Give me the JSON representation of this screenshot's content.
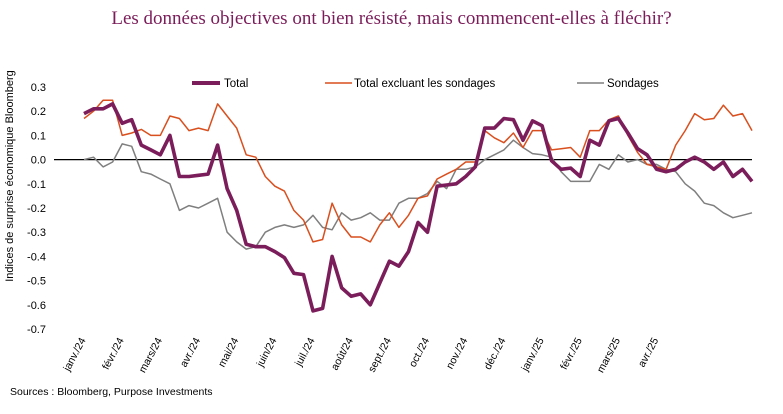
{
  "chart_data": {
    "type": "line",
    "title": "Les données objectives ont bien résisté, mais commencent-elles à fléchir?",
    "ylabel": "Indices de surprise économique Bloomberg",
    "xlabel": "",
    "ylim": [
      -0.7,
      0.3
    ],
    "yticks": [
      "0.3",
      "0.2",
      "0.1",
      "0.0",
      "-0.1",
      "-0.2",
      "-0.3",
      "-0.4",
      "-0.5",
      "-0.6",
      "-0.7"
    ],
    "ytick_values": [
      0.3,
      0.2,
      0.1,
      0.0,
      -0.1,
      -0.2,
      -0.3,
      -0.4,
      -0.5,
      -0.6,
      -0.7
    ],
    "month_labels": [
      "janv./24",
      "févr./24",
      "mars/24",
      "avr./24",
      "mai/24",
      "juin/24",
      "juil./24",
      "août/24",
      "sept./24",
      "oct./24",
      "nov./24",
      "déc./24",
      "janv./25",
      "févr./25",
      "mars/25",
      "avr./25"
    ],
    "points_per_month": 4,
    "source": "Sources : Bloomberg, Purpose Investments",
    "series": [
      {
        "name": "Total",
        "color": "#7b1d5a",
        "values": [
          0.19,
          0.21,
          0.21,
          0.23,
          0.15,
          0.165,
          0.06,
          0.04,
          0.02,
          0.1,
          -0.07,
          -0.07,
          -0.065,
          -0.06,
          0.06,
          -0.12,
          -0.21,
          -0.35,
          -0.36,
          -0.36,
          -0.38,
          -0.405,
          -0.47,
          -0.475,
          -0.625,
          -0.615,
          -0.4,
          -0.53,
          -0.565,
          -0.555,
          -0.6,
          -0.51,
          -0.42,
          -0.44,
          -0.38,
          -0.26,
          -0.3,
          -0.11,
          -0.105,
          -0.1,
          -0.07,
          -0.03,
          0.13,
          0.13,
          0.17,
          0.165,
          0.08,
          0.16,
          0.14,
          -0.005,
          -0.04,
          -0.035,
          -0.07,
          0.08,
          0.06,
          0.16,
          0.17,
          0.11,
          0.045,
          0.02,
          -0.04,
          -0.05,
          -0.04,
          -0.01,
          0.01,
          -0.01,
          -0.04,
          -0.01,
          -0.07,
          -0.04,
          -0.09
        ]
      },
      {
        "name": "Total excluant les sondages",
        "color": "#d94f1e",
        "values": [
          0.17,
          0.2,
          0.245,
          0.245,
          0.1,
          0.11,
          0.125,
          0.1,
          0.1,
          0.18,
          0.17,
          0.12,
          0.13,
          0.12,
          0.23,
          0.18,
          0.13,
          0.02,
          0.01,
          -0.07,
          -0.11,
          -0.13,
          -0.21,
          -0.25,
          -0.34,
          -0.33,
          -0.18,
          -0.27,
          -0.32,
          -0.32,
          -0.34,
          -0.27,
          -0.22,
          -0.28,
          -0.23,
          -0.16,
          -0.15,
          -0.08,
          -0.06,
          -0.04,
          -0.01,
          -0.01,
          0.12,
          0.09,
          0.07,
          0.11,
          0.05,
          0.12,
          0.12,
          0.04,
          0.045,
          0.05,
          0.01,
          0.12,
          0.12,
          0.165,
          0.18,
          0.1,
          0.03,
          -0.02,
          -0.03,
          -0.04,
          0.06,
          0.12,
          0.19,
          0.165,
          0.17,
          0.225,
          0.18,
          0.19,
          0.12
        ]
      },
      {
        "name": "Sondages",
        "color": "#7f7f7f",
        "values": [
          0.0,
          0.01,
          -0.03,
          -0.01,
          0.065,
          0.055,
          -0.05,
          -0.06,
          -0.08,
          -0.1,
          -0.21,
          -0.19,
          -0.2,
          -0.18,
          -0.16,
          -0.3,
          -0.34,
          -0.37,
          -0.36,
          -0.3,
          -0.28,
          -0.27,
          -0.28,
          -0.27,
          -0.23,
          -0.28,
          -0.29,
          -0.22,
          -0.25,
          -0.24,
          -0.22,
          -0.25,
          -0.25,
          -0.18,
          -0.16,
          -0.16,
          -0.14,
          -0.09,
          -0.12,
          -0.04,
          -0.04,
          -0.03,
          0.0,
          0.02,
          0.04,
          0.08,
          0.05,
          0.025,
          0.02,
          0.01,
          -0.05,
          -0.09,
          -0.09,
          -0.09,
          -0.02,
          -0.04,
          0.02,
          -0.01,
          0.0,
          -0.02,
          -0.02,
          -0.04,
          -0.05,
          -0.1,
          -0.13,
          -0.18,
          -0.19,
          -0.22,
          -0.24,
          -0.23,
          -0.22
        ]
      }
    ]
  }
}
